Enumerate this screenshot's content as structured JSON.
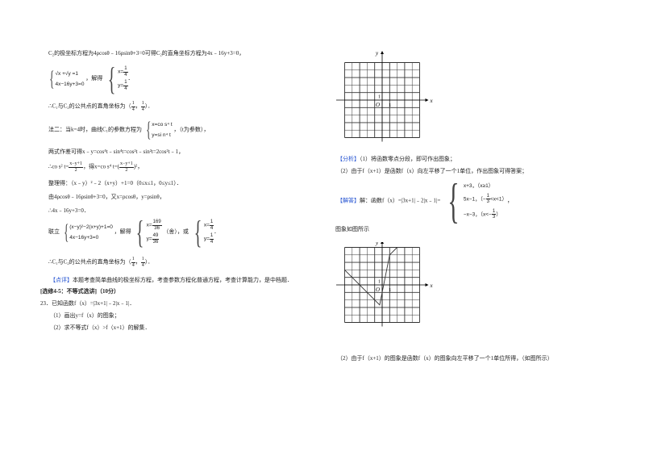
{
  "left": {
    "l1": "C₂的极坐标方程为4ρcosθ﹣16ρsinθ+3=0可得C₂的直角坐标方程为4x﹣16y+3=0，",
    "sys1": [
      "√x +√y =1",
      "4x−16y+3=0"
    ],
    "jiede": "，解得",
    "sol1": {
      "x_lhs": "x=",
      "y_lhs": "y=",
      "num": "1",
      "den": "4"
    },
    "dot": "．",
    "l3_pre": "∴C₁与C₂的公共点的直角坐标为（",
    "l3_post": "）．",
    "l4_pre": "法二：当k=4时，曲线C₁的参数方程为",
    "param": [
      "x=co s⁴ t",
      "y=si n⁴ t"
    ],
    "l4_post": "，（t为参数），",
    "l5": "两式作差可得x﹣y=cos⁴t﹣sin⁴t=cos²t﹣sin²t=2cos²t﹣1，",
    "l6_a": "∴co s² t=",
    "l6_frac": {
      "num": "x−y+1",
      "den": "2"
    },
    "l6_b": "，得x=co s⁴ t=(",
    "l6_c": ")²，",
    "l7": "整理得：（x﹣y）²﹣2（x+y）+1=0（0≤x≤1，0≤y≤1）．",
    "l8": "由4ρcosθ﹣16ρsinθ+3=0，又x=ρcosθ，y=ρsinθ，",
    "l9": "∴4x﹣16y+3=0．",
    "l10_pre": "联立",
    "sys2": [
      "(x−y)²−2(x+y)+1=0",
      "4x−16y+3=0"
    ],
    "sol2a": {
      "xn": "169",
      "xd": "36",
      "yn": "49",
      "yd": "36"
    },
    "she": "（舍），或",
    "l11_pre": "∴C₁与C₂的公共点的直角坐标为（",
    "dianping_tag": "【点评】",
    "dianping": "本题考查简单曲线的极坐标方程，考查参数方程化普通方程，考查计算能力，是中档题．",
    "section": "[选修4-5：不等式选讲]（10分）",
    "q23": "23．已知函数f（x）=|3x+1|﹣2|x﹣1|．",
    "q23_1": "（1）画出y=f（x）的图象；",
    "q23_2": "（2）求不等式f（x）>f（x+1）的解集．"
  },
  "right": {
    "fenxi_tag": "【分析】",
    "fenxi1": "（1）将函数零点分段，即可作出图象；",
    "fenxi2": "（2）由于f（x+1）是函数f（x）向左平移了一个1单位，作出图象可得答案；",
    "jieda_tag": "【解答】",
    "jieda": "解：函数f（x）=|3x+1|﹣2|x﹣1|=",
    "cases": [
      "x+3，（x≥1）",
      "5x−1，（−",
      "<x<1）",
      "−x−3，（x<−",
      "）"
    ],
    "third": {
      "num": "1",
      "den": "3"
    },
    "comma": "，",
    "tuxiang": "图象如图所示",
    "last": "（2）由于f（x+1）的图象是函数f（x）的图象向左平移了一个1单位所得，（如图所示）"
  },
  "graph": {
    "axis_x": "x",
    "axis_y": "y",
    "origin": "O",
    "tick": "1",
    "x_range": [
      -5,
      5
    ],
    "y_range": [
      -5,
      5
    ],
    "polyline": [
      [
        -5,
        2
      ],
      [
        -0.333,
        -2.667
      ],
      [
        1,
        4
      ],
      [
        2,
        5
      ]
    ]
  }
}
